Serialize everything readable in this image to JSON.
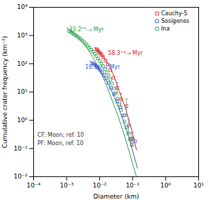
{
  "chart_data": {
    "type": "scatter",
    "xlabel": "Diameter (km)",
    "ylabel": "Cumulative crater frequency (km⁻²)",
    "log": true,
    "grid": false,
    "legend": "upper right",
    "xlim": [
      0.0001,
      10
    ],
    "ylim": [
      0.01,
      10000
    ],
    "xticks": [
      {
        "value": 0.0001,
        "label": "10⁻⁴"
      },
      {
        "value": 0.001,
        "label": "10⁻³"
      },
      {
        "value": 0.01,
        "label": "10⁻²"
      },
      {
        "value": 0.1,
        "label": "10⁻¹"
      },
      {
        "value": 1,
        "label": "10⁰"
      },
      {
        "value": 10,
        "label": "10¹"
      }
    ],
    "yticks": [
      {
        "value": 0.01,
        "label": "10⁻²"
      },
      {
        "value": 0.1,
        "label": "10⁻¹"
      },
      {
        "value": 1,
        "label": "10⁰"
      },
      {
        "value": 10,
        "label": "10¹"
      },
      {
        "value": 100,
        "label": "10²"
      },
      {
        "value": 1000,
        "label": "10³"
      },
      {
        "value": 10000,
        "label": "10⁴"
      }
    ],
    "series": [
      {
        "name": "Cauchy-5",
        "color": "#d42020",
        "marker": "square",
        "x": [
          0.008,
          0.0085,
          0.0092,
          0.01,
          0.0108,
          0.0118,
          0.013,
          0.015,
          0.0175,
          0.021,
          0.026,
          0.034,
          0.045,
          0.065,
          0.09
        ],
        "values": [
          330,
          305,
          275,
          250,
          225,
          200,
          170,
          130,
          95,
          60,
          32,
          14,
          5.5,
          3.2,
          0.22
        ],
        "fit": {
          "x": [
            0.007,
            0.008,
            0.009,
            0.01,
            0.012,
            0.015,
            0.02,
            0.028,
            0.04,
            0.06,
            0.09,
            0.13
          ],
          "values": [
            380,
            335,
            288,
            248,
            190,
            138,
            82,
            34,
            10,
            2.8,
            0.55,
            0.09
          ]
        }
      },
      {
        "name": "Sosigenes",
        "color": "#3355cc",
        "marker": "square",
        "x": [
          0.006,
          0.0067,
          0.0073,
          0.008,
          0.0088,
          0.0096,
          0.0105,
          0.0118,
          0.0135,
          0.0158,
          0.0185,
          0.022,
          0.027,
          0.034,
          0.043,
          0.056,
          0.075,
          0.1,
          0.12
        ],
        "values": [
          105,
          98,
          90,
          82,
          74,
          67,
          59,
          50,
          40,
          30,
          21,
          14,
          8.5,
          4.8,
          2.8,
          1.5,
          0.65,
          0.22,
          0.18
        ],
        "fit": {
          "x": [
            0.005,
            0.006,
            0.008,
            0.01,
            0.013,
            0.018,
            0.025,
            0.035,
            0.05,
            0.075,
            0.11,
            0.14
          ],
          "values": [
            125,
            105,
            80,
            60,
            40,
            20,
            9.0,
            3.5,
            1.1,
            0.28,
            0.055,
            0.02
          ]
        }
      },
      {
        "name": "Ina",
        "color": "#229944",
        "marker": "square",
        "x": [
          0.00118,
          0.00132,
          0.00148,
          0.00165,
          0.00185,
          0.00208,
          0.00235,
          0.00265,
          0.003,
          0.0034,
          0.00385,
          0.00435,
          0.0049,
          0.00555,
          0.00625,
          0.00705,
          0.00795,
          0.00895,
          0.0101,
          0.0114,
          0.0128,
          0.0145,
          0.0164,
          0.0185,
          0.021,
          0.0237,
          0.0269,
          0.0304,
          0.0345,
          0.039,
          0.0442,
          0.05,
          0.0568,
          0.0644,
          0.073,
          0.0828,
          0.094
        ],
        "values": [
          1450,
          1340,
          1230,
          1130,
          1030,
          935,
          840,
          748,
          660,
          578,
          502,
          432,
          370,
          315,
          268,
          225,
          188,
          155,
          127,
          102,
          82,
          64,
          50,
          38,
          28,
          20,
          13.5,
          9.0,
          5.8,
          3.7,
          2.3,
          1.45,
          0.9,
          0.55,
          0.34,
          0.21,
          0.14
        ],
        "fit": {
          "x": [
            0.001,
            0.00135,
            0.0018,
            0.0025,
            0.0033,
            0.0045,
            0.006,
            0.0082,
            0.011,
            0.015,
            0.02,
            0.027,
            0.037,
            0.05,
            0.068,
            0.092,
            0.13
          ],
          "values": [
            1900,
            1500,
            1120,
            770,
            510,
            310,
            180,
            95,
            47,
            21,
            9.0,
            3.5,
            1.3,
            0.45,
            0.14,
            0.04,
            0.01
          ]
        }
      }
    ],
    "errorbars": [
      {
        "x": 0.034,
        "y": 14,
        "minus": 5,
        "plus": 8,
        "color": "gray"
      },
      {
        "x": 0.045,
        "y": 5.5,
        "minus": 2.5,
        "plus": 3.5,
        "color": "gray"
      },
      {
        "x": 0.065,
        "y": 3.2,
        "minus": 1.8,
        "plus": 2.5,
        "color": "gray"
      },
      {
        "x": 0.09,
        "y": 0.22,
        "minus": 0.1,
        "plus": 0.15,
        "color": "gray"
      },
      {
        "x": 0.075,
        "y": 0.65,
        "minus": 0.3,
        "plus": 0.45,
        "color": "gray"
      },
      {
        "x": 0.1,
        "y": 0.22,
        "minus": 0.1,
        "plus": 0.15,
        "color": "gray"
      }
    ],
    "annotations": [
      {
        "text": "33.2⁺²₋₂ Myr",
        "x": 0.00118,
        "y": 1750,
        "color": "#229944"
      },
      {
        "text": "58.3⁺⁴₋₄ Myr",
        "x": 0.018,
        "y": 260,
        "color": "#d42020"
      },
      {
        "text": "18.1⁺¹₋₁ Myr",
        "x": 0.00365,
        "y": 82,
        "color": "#3355cc"
      },
      {
        "text": "CF: Moon, ref. 10\nPF: Moon, ref. 10",
        "x": 0.00013,
        "y": 0.135,
        "color": "#333333"
      }
    ]
  }
}
